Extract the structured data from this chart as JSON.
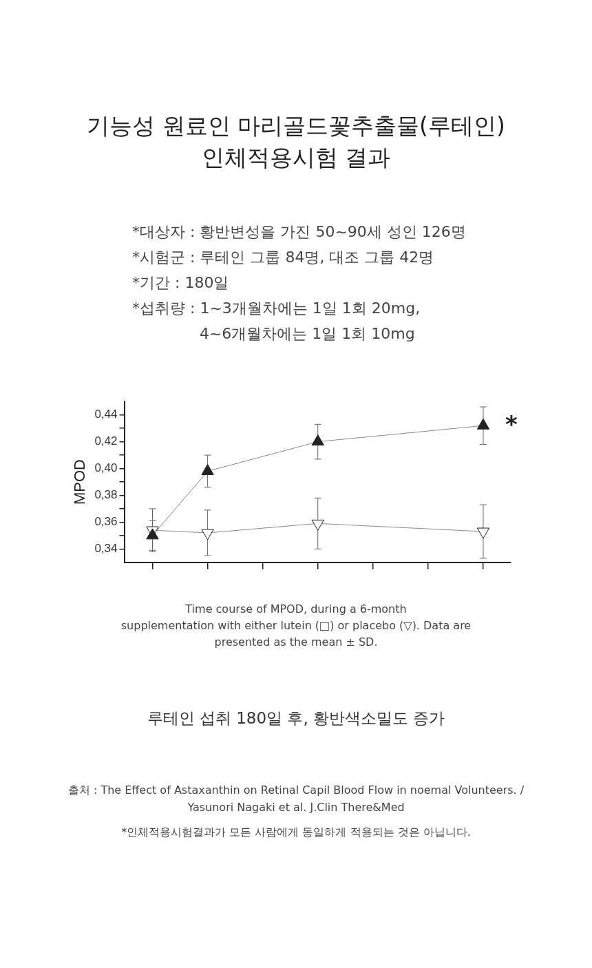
{
  "chart_data": {
    "type": "line",
    "title": "기능성 원료인 마리골드꽃추출물(루테인)\n인체적용시험 결과",
    "subtitle": "*대상자 : 황반변성을 가진 50~90세 성인 126명\n*시험군 : 루테인 그룹 84명, 대조 그룹 42명\n*기간 : 180일\n*섭취량 : 1~3개월차에는 1일 1회 20mg,\n              4~6개월차에는 1일 1회 10mg",
    "ylabel": "MPOD",
    "categories": [
      null,
      null,
      null,
      null,
      null,
      null,
      null
    ],
    "series": [
      {
        "color": "#222222",
        "marker": "triangle",
        "values": [
          0.35,
          0.398,
          null,
          0.42,
          null,
          null,
          0.432
        ],
        "errors": [
          0.011,
          0.012,
          null,
          0.013,
          null,
          null,
          0.014
        ]
      },
      {
        "color": "#ffffff",
        "marker": "triangle",
        "values": [
          0.354,
          0.352,
          null,
          0.359,
          null,
          null,
          0.353
        ],
        "errors": [
          0.016,
          0.017,
          null,
          0.019,
          null,
          null,
          0.02
        ]
      }
    ],
    "ylim": [
      0.33,
      0.45
    ],
    "yticks": [
      {
        "value": 0.34,
        "label": "0,34"
      },
      {
        "value": 0.35,
        "label": null
      },
      {
        "value": 0.36,
        "label": "0,36"
      },
      {
        "value": 0.37,
        "label": null
      },
      {
        "value": 0.38,
        "label": "0,38"
      },
      {
        "value": 0.39,
        "label": null
      },
      {
        "value": 0.4,
        "label": "0,40"
      },
      {
        "value": 0.41,
        "label": null
      },
      {
        "value": 0.42,
        "label": "0,42"
      },
      {
        "value": 0.43,
        "label": null
      },
      {
        "value": 0.44,
        "label": "0,44"
      }
    ],
    "tick_labels": "y",
    "grid": false,
    "legend": false,
    "line_style": "solid",
    "annotations": [
      "*",
      "Time course of MPOD, during a 6-month\nsupplementation with either lutein (□) or placebo (▽). Data are\npresented as the mean ± SD.",
      "루테인 섭취 180일 후, 황반색소밀도 증가",
      "출처 : The Effect of Astaxanthin on Retinal Capil Blood Flow in noemal Volunteers. /\nYasunori Nagaki et al. J.Clin There&Med",
      "*인체적용시험결과가 모든 사람에게 동일하게 적용되는 것은 아닙니다."
    ]
  }
}
